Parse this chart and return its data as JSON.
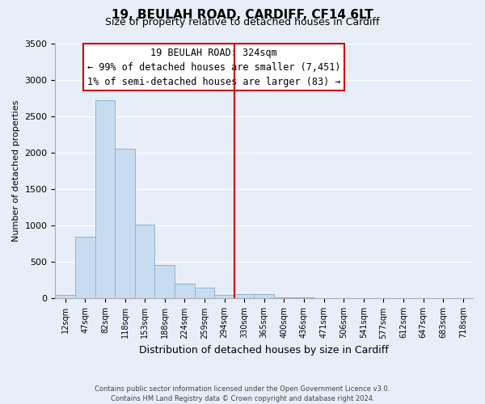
{
  "title": "19, BEULAH ROAD, CARDIFF, CF14 6LT",
  "subtitle": "Size of property relative to detached houses in Cardiff",
  "xlabel": "Distribution of detached houses by size in Cardiff",
  "ylabel": "Number of detached properties",
  "bar_labels": [
    "12sqm",
    "47sqm",
    "82sqm",
    "118sqm",
    "153sqm",
    "188sqm",
    "224sqm",
    "259sqm",
    "294sqm",
    "330sqm",
    "365sqm",
    "400sqm",
    "436sqm",
    "471sqm",
    "506sqm",
    "541sqm",
    "577sqm",
    "612sqm",
    "647sqm",
    "683sqm",
    "718sqm"
  ],
  "bar_values": [
    50,
    850,
    2720,
    2060,
    1010,
    455,
    210,
    145,
    50,
    60,
    55,
    20,
    15,
    0,
    0,
    0,
    0,
    0,
    0,
    0,
    0
  ],
  "bar_color": "#c8dcf0",
  "bar_edge_color": "#8ab4d4",
  "property_line_idx": 9,
  "annotation_title": "19 BEULAH ROAD: 324sqm",
  "annotation_line1": "← 99% of detached houses are smaller (7,451)",
  "annotation_line2": "1% of semi-detached houses are larger (83) →",
  "line_color": "#cc0000",
  "ylim": [
    0,
    3500
  ],
  "yticks": [
    0,
    500,
    1000,
    1500,
    2000,
    2500,
    3000,
    3500
  ],
  "footer_line1": "Contains HM Land Registry data © Crown copyright and database right 2024.",
  "footer_line2": "Contains public sector information licensed under the Open Government Licence v3.0.",
  "background_color": "#e8eef8"
}
